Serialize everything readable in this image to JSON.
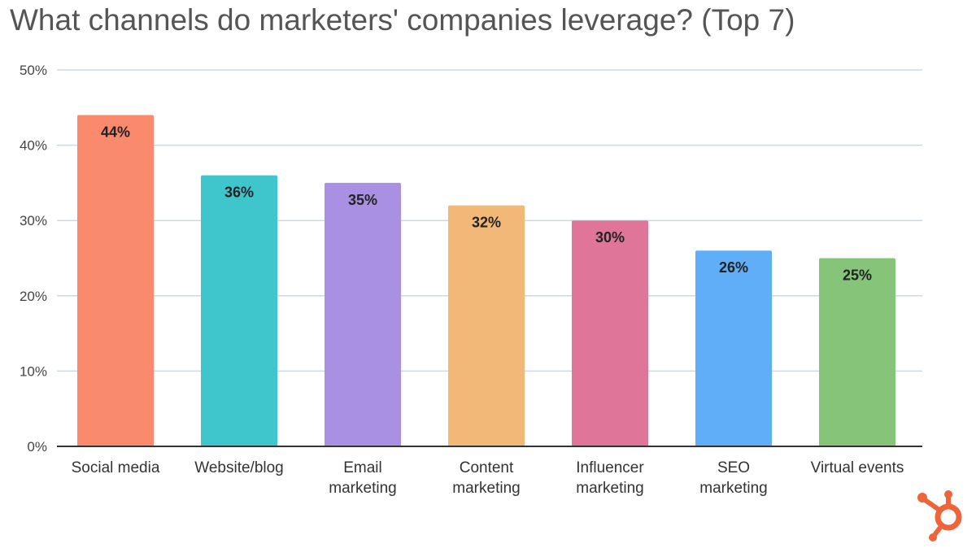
{
  "chart_data": {
    "type": "bar",
    "title": "What channels do marketers' companies leverage? (Top 7)",
    "xlabel": "",
    "ylabel": "",
    "categories": [
      [
        "Social media"
      ],
      [
        "Website/blog"
      ],
      [
        "Email",
        "marketing"
      ],
      [
        "Content",
        "marketing"
      ],
      [
        "Influencer",
        "marketing"
      ],
      [
        "SEO",
        "marketing"
      ],
      [
        "Virtual events"
      ]
    ],
    "values": [
      44,
      36,
      35,
      32,
      30,
      26,
      25
    ],
    "value_labels": [
      "44%",
      "36%",
      "35%",
      "32%",
      "30%",
      "26%",
      "25%"
    ],
    "bar_colors": [
      "#fa8a6e",
      "#3ec6cc",
      "#aa90e2",
      "#f2b877",
      "#e0759a",
      "#60aef8",
      "#86c47a"
    ],
    "ylim": [
      0,
      50
    ],
    "yticks": [
      0,
      10,
      20,
      30,
      40,
      50
    ],
    "ytick_labels": [
      "0%",
      "10%",
      "20%",
      "30%",
      "40%",
      "50%"
    ],
    "grid": true,
    "legend": "none"
  },
  "brand": {
    "logo_icon": "hubspot-sprocket-icon",
    "logo_color": "#f0643c"
  }
}
